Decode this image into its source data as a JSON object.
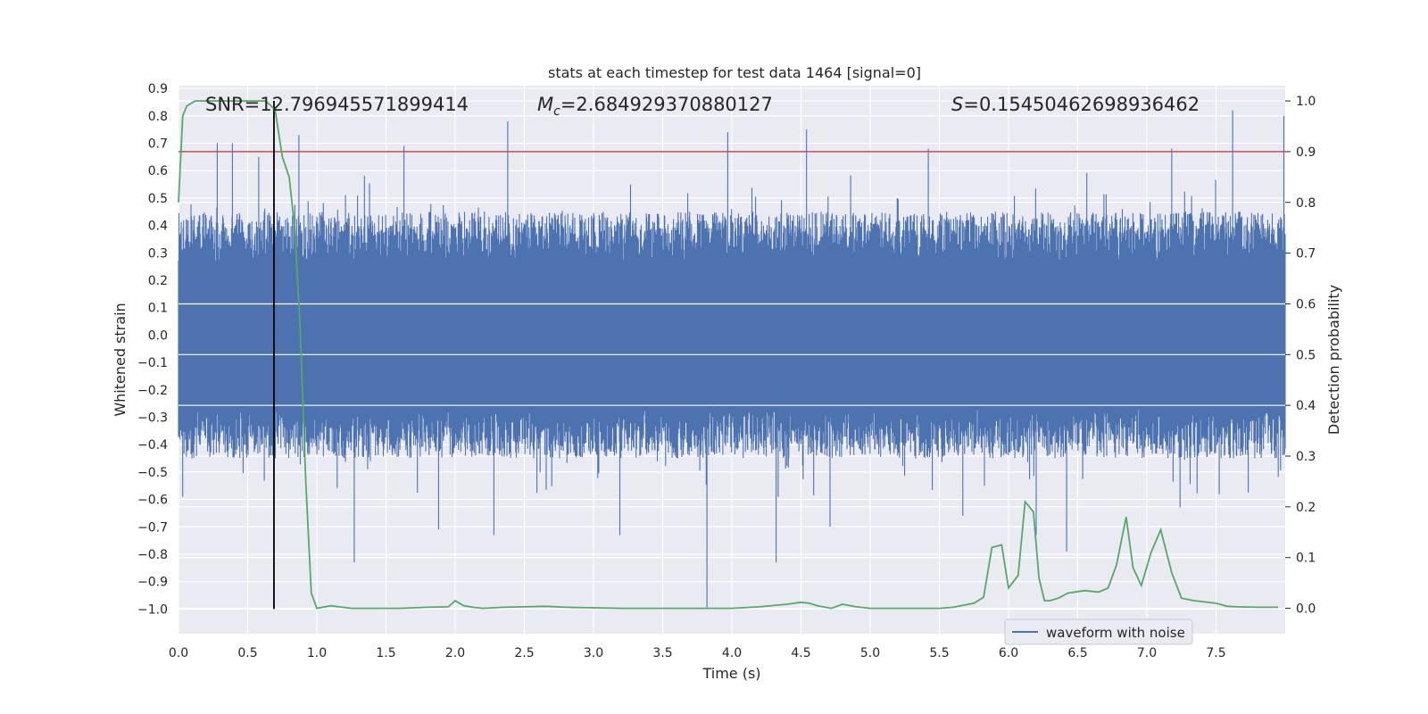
{
  "chart_data": {
    "type": "line",
    "title": "stats at each timestep for test data 1464 [signal=0]",
    "xlabel": "Time (s)",
    "ylabel": "Whitened strain",
    "y2label": "Detection probability",
    "xlim": [
      0.0,
      8.0
    ],
    "ylim": [
      -1.09,
      0.91
    ],
    "y2lim": [
      -0.05,
      1.03
    ],
    "xticks": [
      0.0,
      0.5,
      1.0,
      1.5,
      2.0,
      2.5,
      3.0,
      3.5,
      4.0,
      4.5,
      5.0,
      5.5,
      6.0,
      6.5,
      7.0,
      7.5
    ],
    "xtick_labels": [
      "0.0",
      "0.5",
      "1.0",
      "1.5",
      "2.0",
      "2.5",
      "3.0",
      "3.5",
      "4.0",
      "4.5",
      "5.0",
      "5.5",
      "6.0",
      "6.5",
      "7.0",
      "7.5"
    ],
    "yticks": [
      0.9,
      0.8,
      0.7,
      0.6,
      0.5,
      0.4,
      0.3,
      0.2,
      0.1,
      0.0,
      -0.1,
      -0.2,
      -0.3,
      -0.4,
      -0.5,
      -0.6,
      -0.7,
      -0.8,
      -0.9,
      -1.0
    ],
    "ytick_labels": [
      "0.9",
      "0.8",
      "0.7",
      "0.6",
      "0.5",
      "0.4",
      "0.3",
      "0.2",
      "0.1",
      "0.0",
      "−0.1",
      "−0.2",
      "−0.3",
      "−0.4",
      "−0.5",
      "−0.6",
      "−0.7",
      "−0.8",
      "−0.9",
      "−1.0"
    ],
    "y2ticks": [
      1.0,
      0.9,
      0.8,
      0.7,
      0.6,
      0.5,
      0.4,
      0.3,
      0.2,
      0.1,
      0.0
    ],
    "y2tick_labels": [
      "1.0",
      "0.9",
      "0.8",
      "0.7",
      "0.6",
      "0.5",
      "0.4",
      "0.3",
      "0.2",
      "0.1",
      "0.0"
    ],
    "grid": true,
    "legend": {
      "position": "lower-right",
      "entries": [
        "waveform with noise"
      ]
    },
    "annotations": {
      "snr": "SNR=12.796945571899414",
      "mc_symbol": "M",
      "mc_sub": "c",
      "mc_value": "=2.684929370880127",
      "s_symbol": "S",
      "s_value": "=0.15450462698936462"
    },
    "threshold": {
      "axis": "right",
      "value": 0.9,
      "color": "#c44e52"
    },
    "marker_time": 0.69,
    "colors": {
      "waveform": "#4c72b0",
      "probability": "#55a868",
      "marker": "#000000",
      "threshold": "#c44e52",
      "background": "#eaeaf2"
    },
    "series": [
      {
        "name": "waveform with noise",
        "axis": "left",
        "style": "dense-noise",
        "t_range": [
          0.0,
          8.0
        ],
        "envelope_core": [
          -0.27,
          0.27
        ],
        "typical_peak": 0.45,
        "peaks": [
          {
            "t": 0.28,
            "y": 0.7
          },
          {
            "t": 0.39,
            "y": 0.7
          },
          {
            "t": 0.58,
            "y": 0.65
          },
          {
            "t": 0.87,
            "y": 0.73
          },
          {
            "t": 1.63,
            "y": 0.69
          },
          {
            "t": 2.38,
            "y": 0.78
          },
          {
            "t": 3.97,
            "y": 0.74
          },
          {
            "t": 4.54,
            "y": 0.75
          },
          {
            "t": 5.42,
            "y": 0.68
          },
          {
            "t": 7.18,
            "y": 0.68
          },
          {
            "t": 7.62,
            "y": 0.82
          },
          {
            "t": 7.99,
            "y": 0.8
          },
          {
            "t": 3.82,
            "y": -1.0
          },
          {
            "t": 1.27,
            "y": -0.83
          },
          {
            "t": 4.32,
            "y": -0.83
          },
          {
            "t": 6.42,
            "y": -0.79
          },
          {
            "t": 1.88,
            "y": -0.71
          },
          {
            "t": 2.28,
            "y": -0.73
          },
          {
            "t": 6.2,
            "y": -0.73
          },
          {
            "t": 3.19,
            "y": -0.73
          },
          {
            "t": 5.67,
            "y": -0.66
          },
          {
            "t": 0.03,
            "y": -0.59
          },
          {
            "t": 4.71,
            "y": -0.7
          },
          {
            "t": 7.24,
            "y": -0.63
          }
        ]
      },
      {
        "name": "",
        "axis": "right",
        "x": [
          0.0,
          0.03,
          0.06,
          0.12,
          0.25,
          0.4,
          0.55,
          0.63,
          0.67,
          0.7,
          0.75,
          0.8,
          0.84,
          0.88,
          0.92,
          0.96,
          1.0,
          1.1,
          1.25,
          1.4,
          1.6,
          1.8,
          1.95,
          2.0,
          2.06,
          2.13,
          2.2,
          2.35,
          2.5,
          2.65,
          2.8,
          3.0,
          3.2,
          3.5,
          3.8,
          4.0,
          4.2,
          4.4,
          4.5,
          4.56,
          4.62,
          4.72,
          4.8,
          4.9,
          5.0,
          5.2,
          5.5,
          5.6,
          5.75,
          5.82,
          5.88,
          5.95,
          6.0,
          6.07,
          6.12,
          6.18,
          6.22,
          6.26,
          6.3,
          6.36,
          6.43,
          6.55,
          6.65,
          6.72,
          6.78,
          6.85,
          6.9,
          6.96,
          7.03,
          7.1,
          7.18,
          7.25,
          7.34,
          7.5,
          7.58,
          7.65,
          7.8,
          7.95
        ],
        "values": [
          0.8,
          0.97,
          0.99,
          1.0,
          1.0,
          1.0,
          1.0,
          1.0,
          0.99,
          0.98,
          0.89,
          0.85,
          0.75,
          0.55,
          0.25,
          0.03,
          0.0,
          0.005,
          0.0,
          0.0,
          0.0,
          0.002,
          0.003,
          0.015,
          0.005,
          0.002,
          0.0,
          0.002,
          0.003,
          0.004,
          0.002,
          0.001,
          0.0,
          0.0,
          0.0,
          0.0,
          0.003,
          0.008,
          0.012,
          0.01,
          0.005,
          0.0,
          0.008,
          0.003,
          0.0,
          0.0,
          0.0,
          0.002,
          0.01,
          0.022,
          0.12,
          0.125,
          0.04,
          0.065,
          0.21,
          0.19,
          0.06,
          0.015,
          0.015,
          0.02,
          0.03,
          0.035,
          0.032,
          0.04,
          0.085,
          0.18,
          0.08,
          0.045,
          0.11,
          0.155,
          0.07,
          0.02,
          0.015,
          0.01,
          0.004,
          0.003,
          0.002,
          0.002
        ]
      }
    ]
  }
}
